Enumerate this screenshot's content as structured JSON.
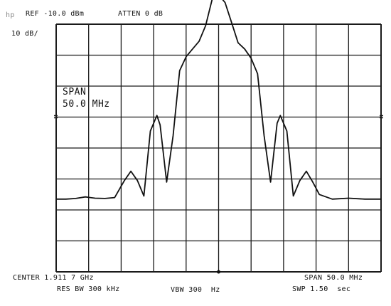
{
  "header": {
    "corner": "hp",
    "ref_level": "REF -10.0 dBm",
    "attenuation": "ATTEN 0 dB",
    "scale": "10 dB/"
  },
  "annotation": {
    "span_label": "SPAN",
    "span_value": "50.0 MHz"
  },
  "footer": {
    "center": "CENTER 1.911 7 GHz",
    "span": "SPAN 50.0 MHz",
    "res_bw": "RES BW 300 kHz",
    "vbw": "VBW 300  Hz",
    "sweep": "SWP 1.50  sec"
  },
  "colors": {
    "trace": "#111111",
    "grid": "#1a1a1a"
  },
  "chart_data": {
    "type": "line",
    "x_divisions": 10,
    "y_divisions": 8,
    "grid": true,
    "x": [
      0,
      0.3,
      0.6,
      0.9,
      1.2,
      1.5,
      1.8,
      2.1,
      2.3,
      2.5,
      2.7,
      2.9,
      3.1,
      3.2,
      3.4,
      3.6,
      3.8,
      4.0,
      4.2,
      4.4,
      4.6,
      4.8,
      5.0,
      5.2,
      5.4,
      5.6,
      5.8,
      6.0,
      6.2,
      6.4,
      6.6,
      6.8,
      6.9,
      7.1,
      7.3,
      7.5,
      7.7,
      7.9,
      8.1,
      8.5,
      9.0,
      9.5,
      10.0
    ],
    "y": [
      2.35,
      2.35,
      2.37,
      2.42,
      2.38,
      2.37,
      2.4,
      2.95,
      3.25,
      2.95,
      2.45,
      4.55,
      5.05,
      4.75,
      2.9,
      4.4,
      6.5,
      6.95,
      7.2,
      7.45,
      7.95,
      8.8,
      8.95,
      8.7,
      8.05,
      7.4,
      7.2,
      6.9,
      6.4,
      4.4,
      2.9,
      4.8,
      5.05,
      4.55,
      2.45,
      2.95,
      3.25,
      2.9,
      2.5,
      2.35,
      2.38,
      2.35,
      2.35
    ]
  }
}
